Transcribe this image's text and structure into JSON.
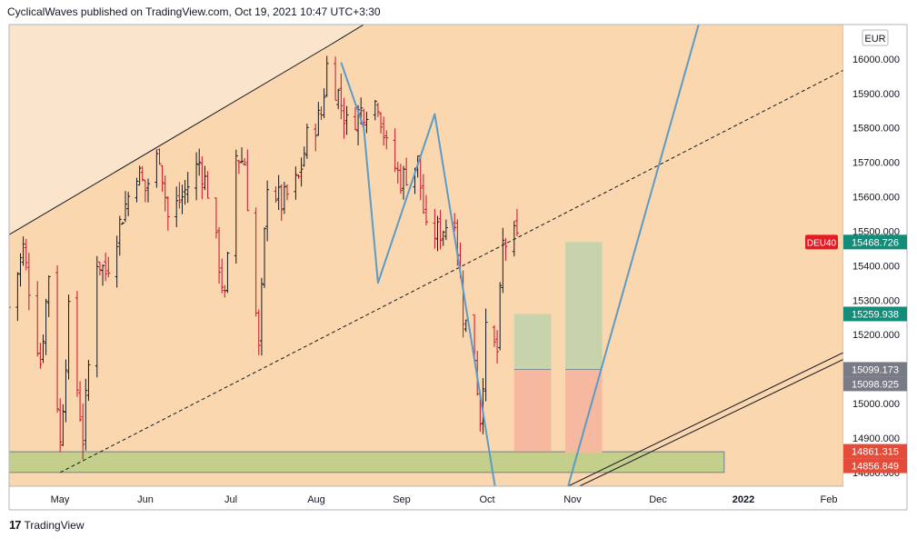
{
  "header": {
    "publisher": "CyclicalWaves published on TradingView.com, Oct 19, 2021 10:47 UTC+3:30"
  },
  "footer": {
    "brand": "TradingView",
    "logo_icon": "tradingview-logo-icon"
  },
  "colors": {
    "background": "#ffffff",
    "plot_background": "#fad7ae",
    "channel_upper_shade": "#fbe4cc",
    "bullish_bar": "#131722",
    "bearish_bar": "#c8102e",
    "wave_line": "#5b9bc8",
    "green_zone": "#c4cf8c",
    "target_zone": "#c6d3ab",
    "stop_zone": "#f6b9a0",
    "badge_symbol": "#e51c23",
    "badge_teal": "#138c7a",
    "badge_gray": "#787b86",
    "badge_red": "#e44b39"
  },
  "chart_data": {
    "type": "candlestick",
    "symbol": "DEU40",
    "currency": "EUR",
    "x_ticks": [
      "May",
      "Jun",
      "Jul",
      "Aug",
      "Sep",
      "Oct",
      "Nov",
      "Dec",
      "2022",
      "Feb"
    ],
    "x_range": [
      "2021-04-23",
      "2022-02-11"
    ],
    "ylim": [
      14760,
      16100
    ],
    "y_ticks": [
      "16000.000",
      "15900.000",
      "15800.000",
      "15700.000",
      "15600.000",
      "15500.000",
      "15400.000",
      "15300.000",
      "15200.000",
      "15100.000",
      "15000.000",
      "14900.000",
      "14800.000"
    ],
    "price_series": [
      {
        "date": "2021-04-23",
        "price": 15280
      },
      {
        "date": "2021-04-28",
        "price": 15450
      },
      {
        "date": "2021-05-04",
        "price": 15120
      },
      {
        "date": "2021-05-07",
        "price": 15380
      },
      {
        "date": "2021-05-11",
        "price": 14880
      },
      {
        "date": "2021-05-14",
        "price": 15260
      },
      {
        "date": "2021-05-19",
        "price": 14900
      },
      {
        "date": "2021-05-24",
        "price": 15420
      },
      {
        "date": "2021-05-27",
        "price": 15380
      },
      {
        "date": "2021-06-02",
        "price": 15550
      },
      {
        "date": "2021-06-07",
        "price": 15680
      },
      {
        "date": "2021-06-10",
        "price": 15620
      },
      {
        "date": "2021-06-15",
        "price": 15730
      },
      {
        "date": "2021-06-18",
        "price": 15540
      },
      {
        "date": "2021-06-23",
        "price": 15600
      },
      {
        "date": "2021-06-29",
        "price": 15700
      },
      {
        "date": "2021-07-02",
        "price": 15620
      },
      {
        "date": "2021-07-08",
        "price": 15300
      },
      {
        "date": "2021-07-12",
        "price": 15720
      },
      {
        "date": "2021-07-15",
        "price": 15700
      },
      {
        "date": "2021-07-20",
        "price": 15150
      },
      {
        "date": "2021-07-23",
        "price": 15650
      },
      {
        "date": "2021-07-28",
        "price": 15580
      },
      {
        "date": "2021-08-03",
        "price": 15650
      },
      {
        "date": "2021-08-06",
        "price": 15770
      },
      {
        "date": "2021-08-11",
        "price": 15840
      },
      {
        "date": "2021-08-13",
        "price": 15980
      },
      {
        "date": "2021-08-17",
        "price": 15900
      },
      {
        "date": "2021-08-20",
        "price": 15810
      },
      {
        "date": "2021-08-25",
        "price": 15850
      },
      {
        "date": "2021-08-31",
        "price": 15880
      },
      {
        "date": "2021-09-03",
        "price": 15740
      },
      {
        "date": "2021-09-08",
        "price": 15650
      },
      {
        "date": "2021-09-14",
        "price": 15700
      },
      {
        "date": "2021-09-17",
        "price": 15490
      },
      {
        "date": "2021-09-22",
        "price": 15500
      },
      {
        "date": "2021-09-27",
        "price": 15550
      },
      {
        "date": "2021-09-30",
        "price": 15260
      },
      {
        "date": "2021-10-04",
        "price": 15140
      },
      {
        "date": "2021-10-06",
        "price": 14960
      },
      {
        "date": "2021-10-08",
        "price": 15200
      },
      {
        "date": "2021-10-12",
        "price": 15150
      },
      {
        "date": "2021-10-14",
        "price": 15460
      },
      {
        "date": "2021-10-18",
        "price": 15480
      },
      {
        "date": "2021-10-19",
        "price": 15469
      }
    ],
    "price_labels": [
      {
        "text": "DEU40",
        "value": 15468.726,
        "kind": "symbol"
      },
      {
        "text": "15468.726",
        "value": 15468.726,
        "kind": "teal"
      },
      {
        "text": "15259.938",
        "value": 15259.938,
        "kind": "teal"
      },
      {
        "text": "15099.173",
        "value": 15099.173,
        "kind": "gray"
      },
      {
        "text": "15098.925",
        "value": 15098.925,
        "kind": "gray"
      },
      {
        "text": "14861.315",
        "value": 14861.315,
        "kind": "red"
      },
      {
        "text": "14856.849",
        "value": 14856.849,
        "kind": "red"
      }
    ],
    "wave_path": [
      {
        "date": "2021-08-18",
        "price": 15990
      },
      {
        "date": "2021-08-26",
        "price": 15800
      },
      {
        "date": "2021-08-31",
        "price": 15350
      },
      {
        "date": "2021-09-20",
        "price": 15840
      },
      {
        "date": "2021-10-12",
        "price": 14720
      }
    ],
    "upper_channel_line": [
      {
        "date": "2021-04-23",
        "price": 15490
      },
      {
        "date": "2021-08-14",
        "price": 16040
      },
      {
        "date": "2021-08-30",
        "price": 16120
      }
    ],
    "middle_channel_line": [
      {
        "date": "2021-05-11",
        "price": 14800
      },
      {
        "date": "2022-02-14",
        "price": 15980
      }
    ],
    "lower_channel_lines": [
      [
        {
          "date": "2021-11-10",
          "price": 14760
        },
        {
          "date": "2022-02-14",
          "price": 15140
        }
      ],
      [
        {
          "date": "2021-11-06",
          "price": 14760
        },
        {
          "date": "2022-02-14",
          "price": 15160
        }
      ]
    ],
    "projection_line": [
      {
        "date": "2021-11-06",
        "price": 14760
      },
      {
        "date": "2021-12-22",
        "price": 16100
      }
    ],
    "support_zone": {
      "from": "2021-04-23",
      "to": "2021-12-31",
      "low": 14800,
      "high": 14860
    },
    "positions": [
      {
        "from": "2021-10-18",
        "to": "2021-10-31",
        "entry": 15099,
        "target": 15260,
        "stop": 14861
      },
      {
        "from": "2021-11-05",
        "to": "2021-11-18",
        "entry": 15099,
        "target": 15469,
        "stop": 14857
      }
    ]
  }
}
